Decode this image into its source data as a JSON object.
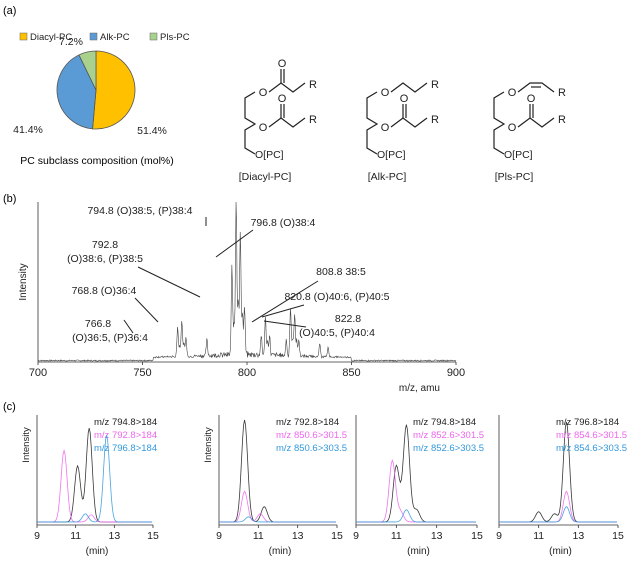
{
  "panel_labels": {
    "a": "(a)",
    "b": "(b)",
    "c": "(c)"
  },
  "chart_data": [
    {
      "type": "pie",
      "panel": "a",
      "title": "PC subclass composition (mol%)",
      "slices": [
        {
          "name": "Diacyl-PC",
          "value": 51.4,
          "label": "51.4%",
          "color": "#FFC000"
        },
        {
          "name": "Alk-PC",
          "value": 41.4,
          "label": "41.4%",
          "color": "#5B9BD5"
        },
        {
          "name": "Pls-PC",
          "value": 7.2,
          "label": "7.2%",
          "color": "#A9D18E"
        }
      ],
      "legend_position": "top"
    },
    {
      "type": "line",
      "panel": "b",
      "xlabel": "m/z, amu",
      "ylabel": "Intensity",
      "xlim": [
        700,
        900
      ],
      "xticks": [
        "700",
        "750",
        "800",
        "850",
        "900"
      ],
      "peaks": [
        {
          "mz": 766.8,
          "rel": 0.19,
          "label": "766.8\n(O)36:5, (P)36:4"
        },
        {
          "mz": 768.8,
          "rel": 0.23,
          "label": "768.8 (O)36:4"
        },
        {
          "mz": 792.8,
          "rel": 0.56,
          "label": "792.8\n(O)38:6, (P)38:5"
        },
        {
          "mz": 794.8,
          "rel": 1.0,
          "label": "794.8 (O)38:5, (P)38:4"
        },
        {
          "mz": 796.8,
          "rel": 0.77,
          "label": "796.8 (O)38:4"
        },
        {
          "mz": 808.8,
          "rel": 0.23,
          "label": "808.8 38:5"
        },
        {
          "mz": 820.8,
          "rel": 0.3,
          "label": "820.8 (O)40:6, (P)40:5"
        },
        {
          "mz": 822.8,
          "rel": 0.27,
          "label": "822.8\n(O)40:5, (P)40:4"
        }
      ]
    },
    {
      "type": "line",
      "panel": "c1",
      "xlabel": "(min)",
      "ylabel": "Intensity",
      "xlim": [
        9,
        15
      ],
      "xticks": [
        "9",
        "11",
        "13",
        "15"
      ],
      "series": [
        {
          "name": "m/z 794.8>184",
          "color": "#222222",
          "peaks": [
            [
              11.7,
              0.92
            ],
            [
              11.1,
              0.55
            ]
          ]
        },
        {
          "name": "m/z 792.8>184",
          "color": "#EE66EE",
          "peaks": [
            [
              10.4,
              0.7
            ],
            [
              11.8,
              0.07
            ]
          ]
        },
        {
          "name": "m/z 796.8>184",
          "color": "#3399DD",
          "peaks": [
            [
              12.6,
              0.85
            ],
            [
              11.5,
              0.08
            ]
          ]
        }
      ]
    },
    {
      "type": "line",
      "panel": "c2",
      "xlabel": "(min)",
      "ylabel": "Intensity",
      "xlim": [
        9,
        15
      ],
      "xticks": [
        "9",
        "11",
        "13",
        "15"
      ],
      "series": [
        {
          "name": "m/z 792.8>184",
          "color": "#222222",
          "peaks": [
            [
              10.3,
              1.0
            ],
            [
              11.3,
              0.15
            ]
          ]
        },
        {
          "name": "m/z 850.6>301.5",
          "color": "#EE66EE",
          "peaks": [
            [
              10.3,
              0.3
            ],
            [
              11.1,
              0.08
            ]
          ]
        },
        {
          "name": "m/z 850.6>303.5",
          "color": "#3399DD",
          "peaks": [
            [
              10.5,
              0.05
            ]
          ]
        }
      ]
    },
    {
      "type": "line",
      "panel": "c3",
      "xlabel": "(min)",
      "xlim": [
        9,
        15
      ],
      "xticks": [
        "9",
        "11",
        "13",
        "15"
      ],
      "series": [
        {
          "name": "m/z 794.8>184",
          "color": "#222222",
          "peaks": [
            [
              11.5,
              0.95
            ],
            [
              11.0,
              0.55
            ],
            [
              12.0,
              0.12
            ]
          ]
        },
        {
          "name": "m/z 852.6>301.5",
          "color": "#EE66EE",
          "peaks": [
            [
              10.8,
              0.6
            ],
            [
              11.2,
              0.1
            ]
          ]
        },
        {
          "name": "m/z 852.6>303.5",
          "color": "#3399DD",
          "peaks": [
            [
              11.5,
              0.12
            ]
          ]
        }
      ]
    },
    {
      "type": "line",
      "panel": "c4",
      "xlabel": "(min)",
      "xlim": [
        9,
        15
      ],
      "xticks": [
        "9",
        "11",
        "13",
        "15"
      ],
      "series": [
        {
          "name": "m/z 796.8>184",
          "color": "#222222",
          "peaks": [
            [
              12.4,
              0.98
            ],
            [
              11.0,
              0.1
            ],
            [
              11.8,
              0.08
            ]
          ]
        },
        {
          "name": "m/z 854.6>301.5",
          "color": "#EE66EE",
          "peaks": [
            [
              12.4,
              0.3
            ]
          ]
        },
        {
          "name": "m/z 854.6>303.5",
          "color": "#3399DD",
          "peaks": [
            [
              12.4,
              0.15
            ]
          ]
        }
      ]
    }
  ],
  "structures": [
    {
      "name": "[Diacyl-PC]",
      "head": "O[PC]",
      "r": "R",
      "o": "O"
    },
    {
      "name": "[Alk-PC]",
      "head": "O[PC]",
      "r": "R",
      "o": "O"
    },
    {
      "name": "[Pls-PC]",
      "head": "O[PC]",
      "r": "R",
      "o": "O"
    }
  ]
}
